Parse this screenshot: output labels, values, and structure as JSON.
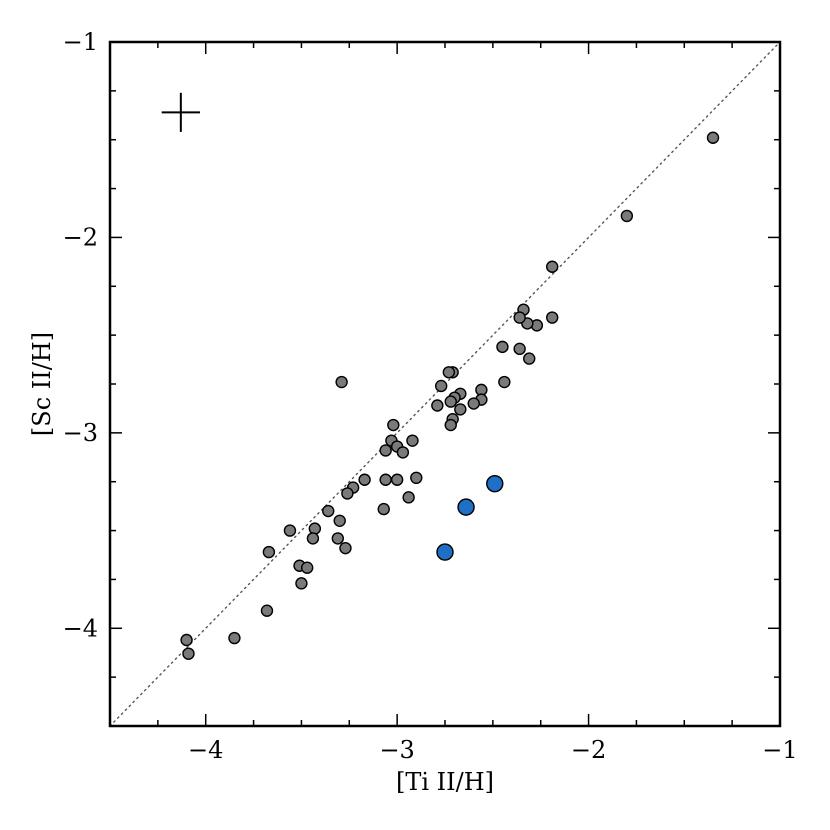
{
  "chart_data": {
    "type": "scatter",
    "title": "",
    "xlabel": "[Ti II/H]",
    "ylabel": "[Sc II/H]",
    "xlim": [
      -4.5,
      -1
    ],
    "ylim": [
      -4.5,
      -1
    ],
    "xticks": [
      -4,
      -3,
      -2,
      -1
    ],
    "yticks": [
      -4,
      -3,
      -2,
      -1
    ],
    "xtick_labels": [
      "−4",
      "−3",
      "−2",
      "−1"
    ],
    "ytick_labels": [
      "−4",
      "−3",
      "−2",
      "−1"
    ],
    "grid": false,
    "reference_line": {
      "style": "dotted",
      "color": "#555555",
      "from": [
        -4.5,
        -4.5
      ],
      "to": [
        -1,
        -1
      ]
    },
    "error_bar": {
      "x": -4.13,
      "y": -1.36,
      "xerr": 0.1,
      "yerr": 0.1
    },
    "series": [
      {
        "marker_color": "#7a7a7a",
        "marker_size": "small",
        "points": [
          [
            -1.35,
            -1.49
          ],
          [
            -1.8,
            -1.89
          ],
          [
            -2.19,
            -2.15
          ],
          [
            -2.19,
            -2.41
          ],
          [
            -2.27,
            -2.45
          ],
          [
            -2.31,
            -2.62
          ],
          [
            -2.32,
            -2.44
          ],
          [
            -2.34,
            -2.37
          ],
          [
            -2.36,
            -2.41
          ],
          [
            -2.36,
            -2.57
          ],
          [
            -2.45,
            -2.56
          ],
          [
            -2.44,
            -2.74
          ],
          [
            -2.56,
            -2.78
          ],
          [
            -2.56,
            -2.83
          ],
          [
            -2.6,
            -2.85
          ],
          [
            -2.67,
            -2.8
          ],
          [
            -2.67,
            -2.88
          ],
          [
            -2.7,
            -2.82
          ],
          [
            -2.71,
            -2.69
          ],
          [
            -2.73,
            -2.69
          ],
          [
            -2.72,
            -2.84
          ],
          [
            -2.71,
            -2.93
          ],
          [
            -2.72,
            -2.96
          ],
          [
            -2.77,
            -2.76
          ],
          [
            -2.79,
            -2.86
          ],
          [
            -3.29,
            -2.74
          ],
          [
            -3.02,
            -2.96
          ],
          [
            -3.03,
            -3.04
          ],
          [
            -3.0,
            -3.07
          ],
          [
            -2.97,
            -3.1
          ],
          [
            -3.06,
            -3.09
          ],
          [
            -2.92,
            -3.04
          ],
          [
            -2.9,
            -3.23
          ],
          [
            -3.0,
            -3.24
          ],
          [
            -3.06,
            -3.24
          ],
          [
            -2.94,
            -3.33
          ],
          [
            -3.17,
            -3.24
          ],
          [
            -3.23,
            -3.28
          ],
          [
            -3.26,
            -3.31
          ],
          [
            -3.07,
            -3.39
          ],
          [
            -3.36,
            -3.4
          ],
          [
            -3.3,
            -3.45
          ],
          [
            -3.43,
            -3.49
          ],
          [
            -3.56,
            -3.5
          ],
          [
            -3.44,
            -3.54
          ],
          [
            -3.31,
            -3.54
          ],
          [
            -3.27,
            -3.59
          ],
          [
            -3.67,
            -3.61
          ],
          [
            -3.51,
            -3.68
          ],
          [
            -3.47,
            -3.69
          ],
          [
            -3.5,
            -3.77
          ],
          [
            -3.68,
            -3.91
          ],
          [
            -3.85,
            -4.05
          ],
          [
            -4.1,
            -4.06
          ],
          [
            -4.09,
            -4.13
          ]
        ]
      },
      {
        "marker_color": "#1f6fc6",
        "marker_size": "large",
        "points": [
          [
            -2.49,
            -3.26
          ],
          [
            -2.64,
            -3.38
          ],
          [
            -2.75,
            -3.61
          ]
        ]
      }
    ]
  }
}
